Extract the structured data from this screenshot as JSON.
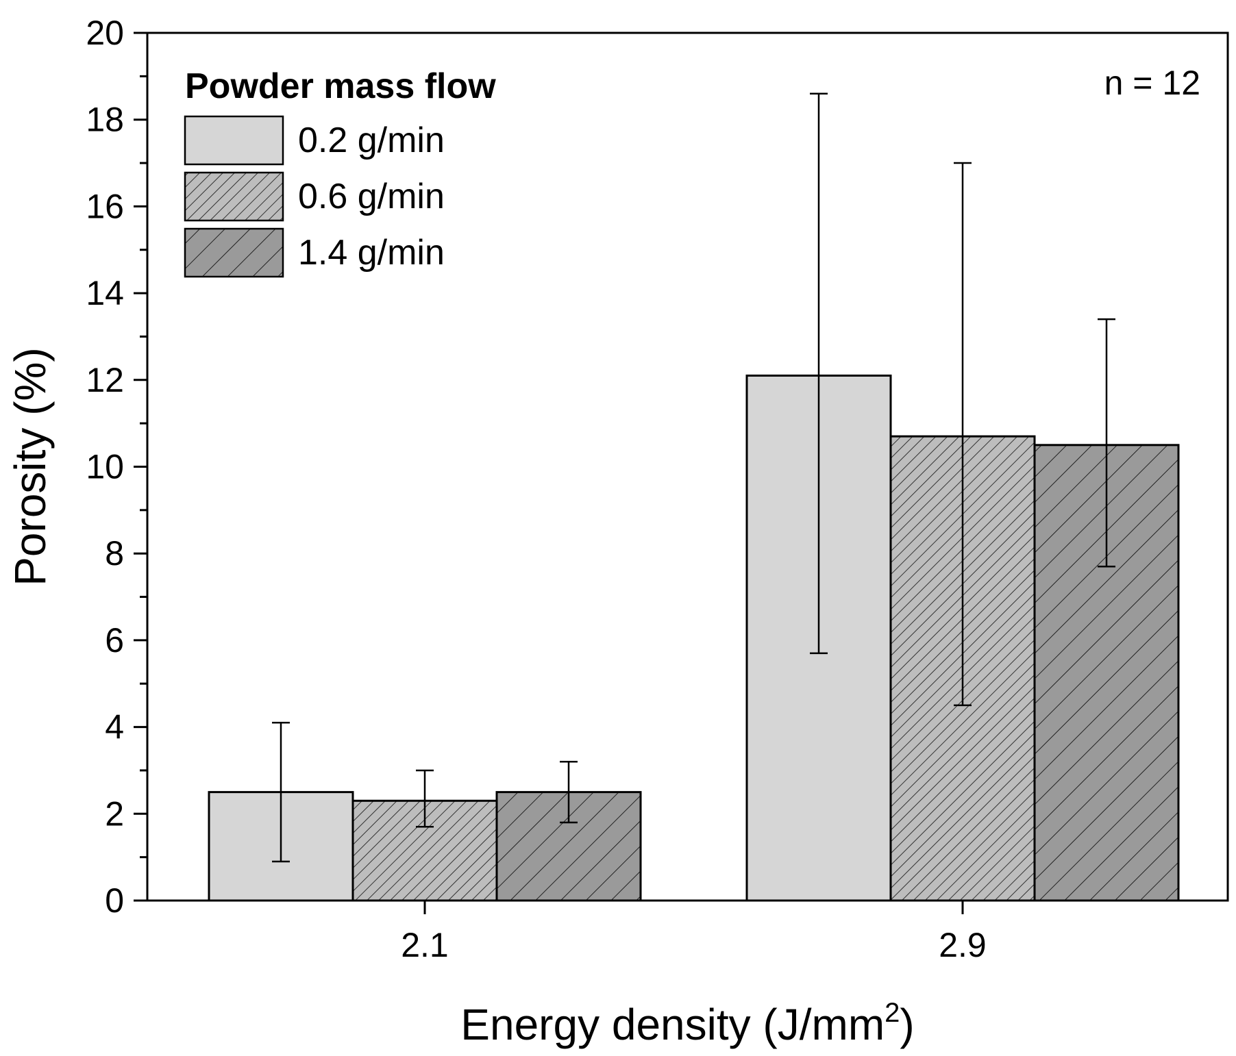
{
  "chart_data": {
    "type": "bar",
    "title": "",
    "xlabel": "Energy density (J/mm",
    "xlabel_superscript": "2",
    "xlabel_close": ")",
    "ylabel": "Porosity (%)",
    "ylim": [
      0,
      20
    ],
    "yticks": [
      "0",
      "2",
      "4",
      "6",
      "8",
      "10",
      "12",
      "14",
      "16",
      "18",
      "20"
    ],
    "categories": [
      "2.1",
      "2.9"
    ],
    "legend": {
      "title": "Powder mass flow",
      "position": "top-left"
    },
    "annotation": "n = 12",
    "series": [
      {
        "name": "0.2 g/min",
        "values": [
          2.5,
          12.1
        ],
        "error_low": [
          0.9,
          5.7
        ],
        "error_high": [
          4.1,
          18.6
        ],
        "color": "#d6d6d6",
        "pattern": "none"
      },
      {
        "name": "0.6 g/min",
        "values": [
          2.3,
          10.7
        ],
        "error_low": [
          1.7,
          4.5
        ],
        "error_high": [
          3.0,
          17.0
        ],
        "color": "#bdbdbd",
        "pattern": "dense-hatch"
      },
      {
        "name": "1.4 g/min",
        "values": [
          2.5,
          10.5
        ],
        "error_low": [
          1.8,
          7.7
        ],
        "error_high": [
          3.2,
          13.4
        ],
        "color": "#9a9a9a",
        "pattern": "sparse-hatch"
      }
    ]
  }
}
